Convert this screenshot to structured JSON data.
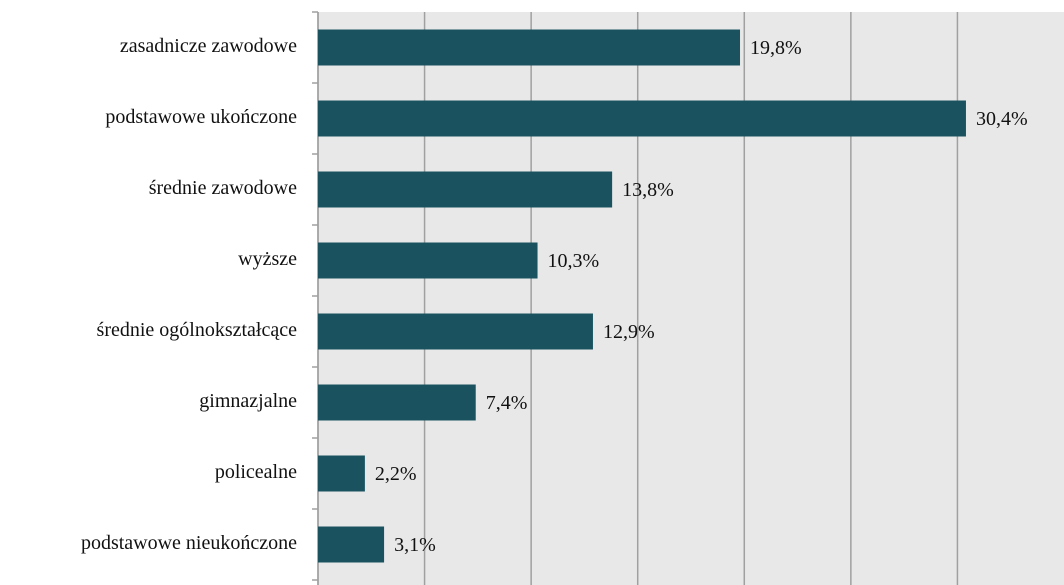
{
  "chart_data": {
    "type": "hbar",
    "categories": [
      "zasadnicze zawodowe",
      "podstawowe ukończone",
      "średnie zawodowe",
      "wyższe",
      "średnie ogólnokształcące",
      "gimnazjalne",
      "policealne",
      "podstawowe nieukończone"
    ],
    "values": [
      19.8,
      30.4,
      13.8,
      10.3,
      12.9,
      7.4,
      2.2,
      3.1
    ],
    "value_labels": [
      "19,8%",
      "30,4%",
      "13,8%",
      "10,3%",
      "12,9%",
      "7,4%",
      "2,2%",
      "3,1%"
    ],
    "color": "#1a535f",
    "xlim": [
      0,
      35
    ],
    "xticks": [
      0,
      5,
      10,
      15,
      20,
      25,
      30
    ],
    "grid": true
  }
}
